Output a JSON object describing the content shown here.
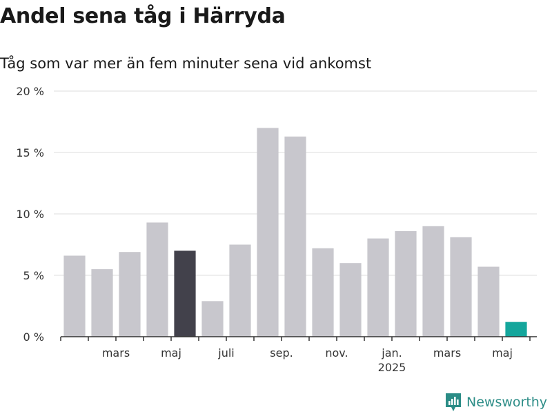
{
  "header": {
    "title": "Andel sena tåg i Härryda",
    "subtitle": "Tåg som var mer än fem minuter sena vid ankomst"
  },
  "brand": {
    "name": "Newsworthy",
    "icon": "newsworthy-logo-icon"
  },
  "colors": {
    "bar_default": "#c8c7cd",
    "bar_highlight": "#42414b",
    "bar_latest": "#14a69c",
    "grid": "#dddddd",
    "axis": "#333333",
    "brand": "#2b8c86"
  },
  "chart_data": {
    "type": "bar",
    "categories": [
      "2024-02",
      "2024-03",
      "2024-04",
      "2024-05",
      "2024-06",
      "2024-07",
      "2024-08",
      "2024-09",
      "2024-10",
      "2024-11",
      "2024-12",
      "2025-01",
      "2025-02",
      "2025-03",
      "2025-04",
      "2025-05",
      "2025-06"
    ],
    "values": [
      6.6,
      5.5,
      6.9,
      9.3,
      7.0,
      2.9,
      7.5,
      17.0,
      16.3,
      7.2,
      6.0,
      8.0,
      8.6,
      9.0,
      8.1,
      5.7,
      1.2
    ],
    "highlight": {
      "2024-06": "bar_highlight",
      "2025-06": "bar_latest"
    },
    "ylim": [
      0,
      20
    ],
    "yticks": [
      {
        "value": 0,
        "label": "0 %"
      },
      {
        "value": 5,
        "label": "5 %"
      },
      {
        "value": 10,
        "label": "10 %"
      },
      {
        "value": 15,
        "label": "15 %"
      },
      {
        "value": 20,
        "label": "20 %"
      }
    ],
    "xtick_labels": [
      {
        "between": 1,
        "label": "mars"
      },
      {
        "between": 3,
        "label": "maj"
      },
      {
        "between": 5,
        "label": "juli"
      },
      {
        "between": 7,
        "label": "sep."
      },
      {
        "between": 9,
        "label": "nov."
      },
      {
        "between": 11,
        "label": "jan.",
        "sublabel": "2025"
      },
      {
        "between": 13,
        "label": "mars"
      },
      {
        "between": 15,
        "label": "maj"
      }
    ],
    "grid": true,
    "legend": "none"
  }
}
